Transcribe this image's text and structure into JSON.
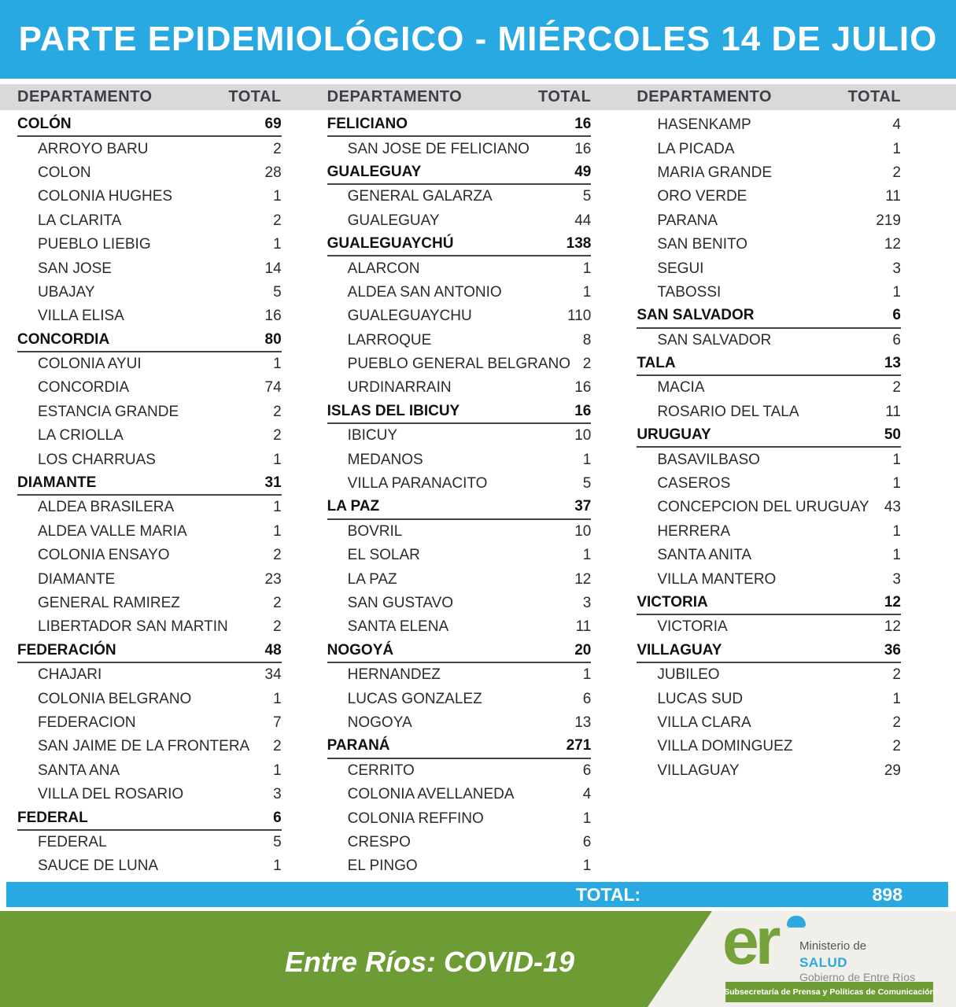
{
  "title": "PARTE EPIDEMIOLÓGICO - MIÉRCOLES 14 DE JULIO",
  "colors": {
    "accent_blue": "#29a9e1",
    "header_gray": "#d9d9d9",
    "footer_green": "#6e9c34",
    "logo_green": "#76a23b",
    "salud_blue": "#2ba9e0",
    "offwhite": "#f0efea"
  },
  "table": {
    "header": {
      "department": "DEPARTAMENTO",
      "total": "TOTAL"
    },
    "columns": [
      {
        "rows": [
          {
            "kind": "dept",
            "name": "COLÓN",
            "total": "69"
          },
          {
            "kind": "loc",
            "name": "ARROYO BARU",
            "total": "2"
          },
          {
            "kind": "loc",
            "name": "COLON",
            "total": "28"
          },
          {
            "kind": "loc",
            "name": "COLONIA HUGHES",
            "total": "1"
          },
          {
            "kind": "loc",
            "name": "LA CLARITA",
            "total": "2"
          },
          {
            "kind": "loc",
            "name": "PUEBLO LIEBIG",
            "total": "1"
          },
          {
            "kind": "loc",
            "name": "SAN JOSE",
            "total": "14"
          },
          {
            "kind": "loc",
            "name": "UBAJAY",
            "total": "5"
          },
          {
            "kind": "loc",
            "name": "VILLA ELISA",
            "total": "16"
          },
          {
            "kind": "dept",
            "name": "CONCORDIA",
            "total": "80"
          },
          {
            "kind": "loc",
            "name": "COLONIA AYUI",
            "total": "1"
          },
          {
            "kind": "loc",
            "name": "CONCORDIA",
            "total": "74"
          },
          {
            "kind": "loc",
            "name": "ESTANCIA GRANDE",
            "total": "2"
          },
          {
            "kind": "loc",
            "name": "LA CRIOLLA",
            "total": "2"
          },
          {
            "kind": "loc",
            "name": "LOS CHARRUAS",
            "total": "1"
          },
          {
            "kind": "dept",
            "name": "DIAMANTE",
            "total": "31"
          },
          {
            "kind": "loc",
            "name": "ALDEA BRASILERA",
            "total": "1"
          },
          {
            "kind": "loc",
            "name": "ALDEA VALLE MARIA",
            "total": "1"
          },
          {
            "kind": "loc",
            "name": "COLONIA ENSAYO",
            "total": "2"
          },
          {
            "kind": "loc",
            "name": "DIAMANTE",
            "total": "23"
          },
          {
            "kind": "loc",
            "name": "GENERAL RAMIREZ",
            "total": "2"
          },
          {
            "kind": "loc",
            "name": "LIBERTADOR SAN MARTIN",
            "total": "2"
          },
          {
            "kind": "dept",
            "name": "FEDERACIÓN",
            "total": "48"
          },
          {
            "kind": "loc",
            "name": "CHAJARI",
            "total": "34"
          },
          {
            "kind": "loc",
            "name": "COLONIA BELGRANO",
            "total": "1"
          },
          {
            "kind": "loc",
            "name": "FEDERACION",
            "total": "7"
          },
          {
            "kind": "loc",
            "name": "SAN JAIME DE LA FRONTERA",
            "total": "2"
          },
          {
            "kind": "loc",
            "name": "SANTA ANA",
            "total": "1"
          },
          {
            "kind": "loc",
            "name": "VILLA DEL ROSARIO",
            "total": "3"
          },
          {
            "kind": "dept",
            "name": "FEDERAL",
            "total": "6"
          },
          {
            "kind": "loc",
            "name": "FEDERAL",
            "total": "5"
          },
          {
            "kind": "loc",
            "name": "SAUCE DE LUNA",
            "total": "1"
          }
        ]
      },
      {
        "rows": [
          {
            "kind": "dept",
            "name": "FELICIANO",
            "total": "16"
          },
          {
            "kind": "loc",
            "name": "SAN JOSE DE FELICIANO",
            "total": "16"
          },
          {
            "kind": "dept",
            "name": "GUALEGUAY",
            "total": "49"
          },
          {
            "kind": "loc",
            "name": "GENERAL GALARZA",
            "total": "5"
          },
          {
            "kind": "loc",
            "name": "GUALEGUAY",
            "total": "44"
          },
          {
            "kind": "dept",
            "name": "GUALEGUAYCHÚ",
            "total": "138"
          },
          {
            "kind": "loc",
            "name": "ALARCON",
            "total": "1"
          },
          {
            "kind": "loc",
            "name": "ALDEA SAN ANTONIO",
            "total": "1"
          },
          {
            "kind": "loc",
            "name": "GUALEGUAYCHU",
            "total": "110"
          },
          {
            "kind": "loc",
            "name": "LARROQUE",
            "total": "8"
          },
          {
            "kind": "loc",
            "name": "PUEBLO GENERAL BELGRANO",
            "total": "2"
          },
          {
            "kind": "loc",
            "name": "URDINARRAIN",
            "total": "16"
          },
          {
            "kind": "dept",
            "name": "ISLAS DEL IBICUY",
            "total": "16"
          },
          {
            "kind": "loc",
            "name": "IBICUY",
            "total": "10"
          },
          {
            "kind": "loc",
            "name": "MEDANOS",
            "total": "1"
          },
          {
            "kind": "loc",
            "name": "VILLA PARANACITO",
            "total": "5"
          },
          {
            "kind": "dept",
            "name": "LA PAZ",
            "total": "37"
          },
          {
            "kind": "loc",
            "name": "BOVRIL",
            "total": "10"
          },
          {
            "kind": "loc",
            "name": "EL SOLAR",
            "total": "1"
          },
          {
            "kind": "loc",
            "name": "LA PAZ",
            "total": "12"
          },
          {
            "kind": "loc",
            "name": "SAN GUSTAVO",
            "total": "3"
          },
          {
            "kind": "loc",
            "name": "SANTA ELENA",
            "total": "11"
          },
          {
            "kind": "dept",
            "name": "NOGOYÁ",
            "total": "20"
          },
          {
            "kind": "loc",
            "name": "HERNANDEZ",
            "total": "1"
          },
          {
            "kind": "loc",
            "name": "LUCAS GONZALEZ",
            "total": "6"
          },
          {
            "kind": "loc",
            "name": "NOGOYA",
            "total": "13"
          },
          {
            "kind": "dept",
            "name": "PARANÁ",
            "total": "271"
          },
          {
            "kind": "loc",
            "name": "CERRITO",
            "total": "6"
          },
          {
            "kind": "loc",
            "name": "COLONIA AVELLANEDA",
            "total": "4"
          },
          {
            "kind": "loc",
            "name": "COLONIA REFFINO",
            "total": "1"
          },
          {
            "kind": "loc",
            "name": "CRESPO",
            "total": "6"
          },
          {
            "kind": "loc",
            "name": "EL PINGO",
            "total": "1"
          }
        ]
      },
      {
        "rows": [
          {
            "kind": "loc",
            "name": "HASENKAMP",
            "total": "4"
          },
          {
            "kind": "loc",
            "name": "LA PICADA",
            "total": "1"
          },
          {
            "kind": "loc",
            "name": "MARIA GRANDE",
            "total": "2"
          },
          {
            "kind": "loc",
            "name": "ORO VERDE",
            "total": "11"
          },
          {
            "kind": "loc",
            "name": "PARANA",
            "total": "219"
          },
          {
            "kind": "loc",
            "name": "SAN BENITO",
            "total": "12"
          },
          {
            "kind": "loc",
            "name": "SEGUI",
            "total": "3"
          },
          {
            "kind": "loc",
            "name": "TABOSSI",
            "total": "1"
          },
          {
            "kind": "dept",
            "name": "SAN SALVADOR",
            "total": "6"
          },
          {
            "kind": "loc",
            "name": "SAN SALVADOR",
            "total": "6"
          },
          {
            "kind": "dept",
            "name": "TALA",
            "total": "13"
          },
          {
            "kind": "loc",
            "name": "MACIA",
            "total": "2"
          },
          {
            "kind": "loc",
            "name": "ROSARIO DEL TALA",
            "total": "11"
          },
          {
            "kind": "dept",
            "name": "URUGUAY",
            "total": "50"
          },
          {
            "kind": "loc",
            "name": "BASAVILBASO",
            "total": "1"
          },
          {
            "kind": "loc",
            "name": "CASEROS",
            "total": "1"
          },
          {
            "kind": "loc",
            "name": "CONCEPCION DEL URUGUAY",
            "total": "43"
          },
          {
            "kind": "loc",
            "name": "HERRERA",
            "total": "1"
          },
          {
            "kind": "loc",
            "name": "SANTA ANITA",
            "total": "1"
          },
          {
            "kind": "loc",
            "name": "VILLA MANTERO",
            "total": "3"
          },
          {
            "kind": "dept",
            "name": "VICTORIA",
            "total": "12"
          },
          {
            "kind": "loc",
            "name": "VICTORIA",
            "total": "12"
          },
          {
            "kind": "dept",
            "name": "VILLAGUAY",
            "total": "36"
          },
          {
            "kind": "loc",
            "name": "JUBILEO",
            "total": "2"
          },
          {
            "kind": "loc",
            "name": "LUCAS SUD",
            "total": "1"
          },
          {
            "kind": "loc",
            "name": "VILLA CLARA",
            "total": "2"
          },
          {
            "kind": "loc",
            "name": "VILLA DOMINGUEZ",
            "total": "2"
          },
          {
            "kind": "loc",
            "name": "VILLAGUAY",
            "total": "29"
          }
        ]
      }
    ]
  },
  "grand_total": {
    "label": "TOTAL:",
    "value": "898"
  },
  "footer": {
    "slogan": "Entre Ríos: COVID-19",
    "logo": {
      "monogram": "er",
      "line1": "Ministerio de",
      "line2": "SALUD",
      "line3": "Gobierno de Entre Ríos"
    },
    "badge": "Subsecretaría de Prensa y Políticas de Comunicación"
  }
}
